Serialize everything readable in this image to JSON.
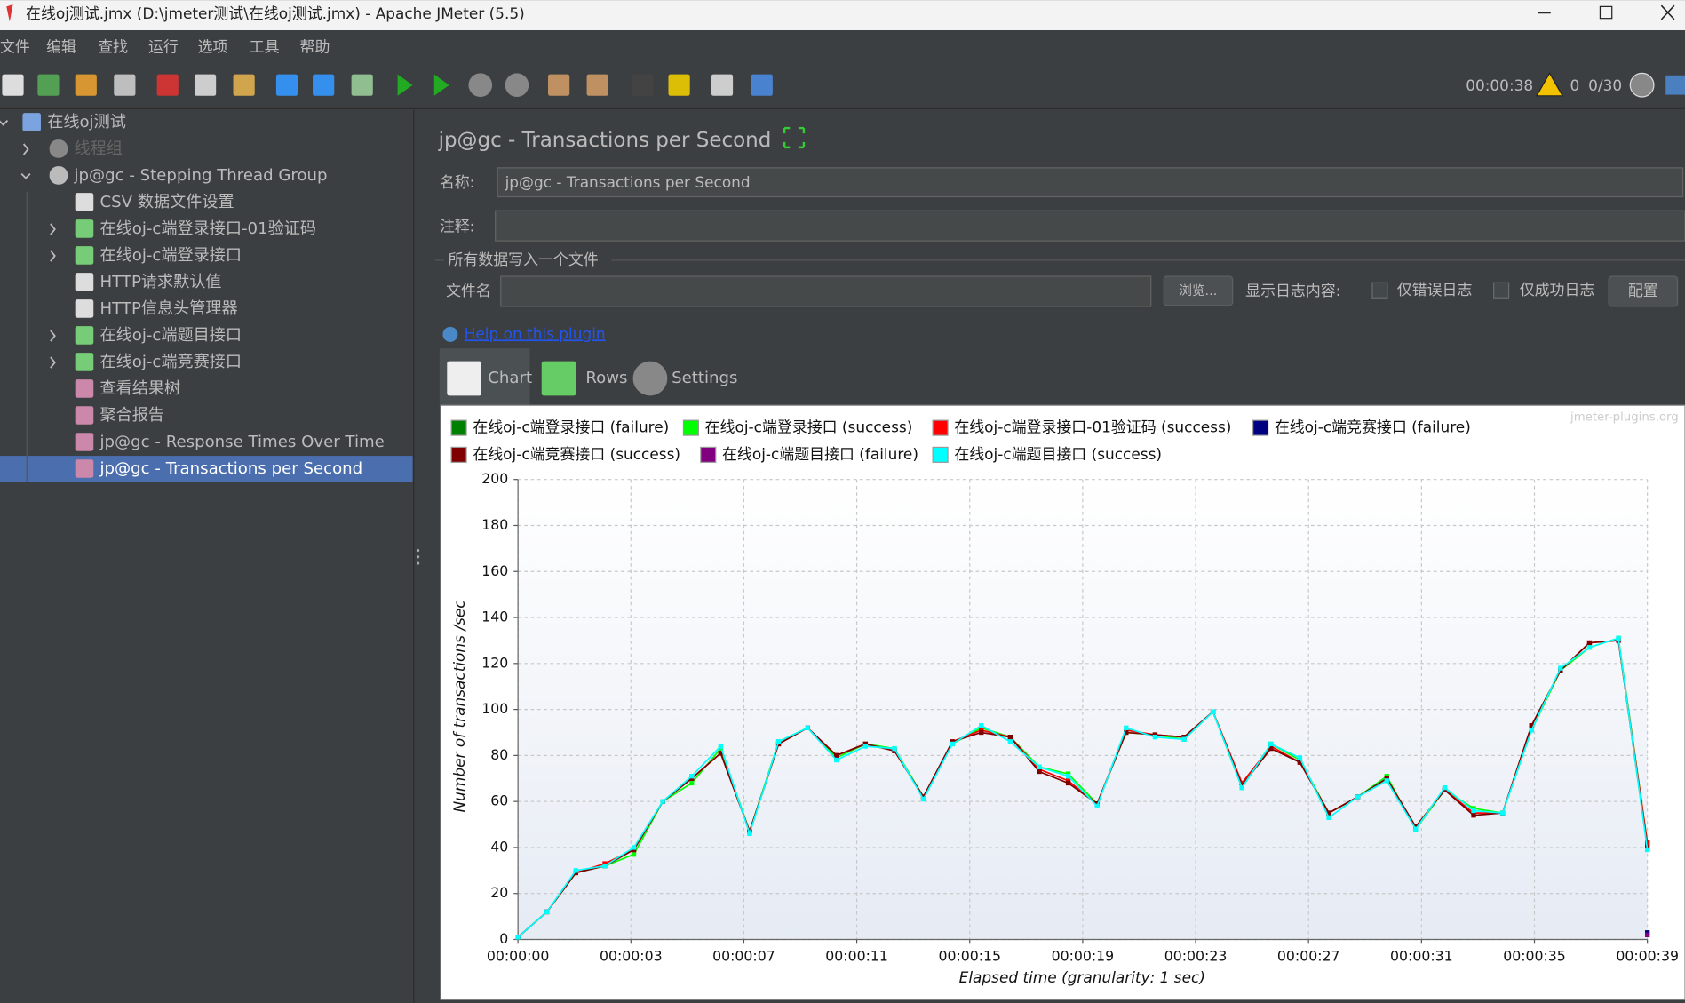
{
  "window": {
    "title": "在线oj测试.jmx (D:\\jmeter测试\\在线oj测试.jmx) - Apache JMeter (5.5)"
  },
  "menu": [
    "文件",
    "编辑",
    "查找",
    "运行",
    "选项",
    "工具",
    "帮助"
  ],
  "toolbar": {
    "elapsed": "00:00:38",
    "warnings": "0",
    "threads": "0/30"
  },
  "tree": [
    "在线oj测试",
    "线程组",
    "jp@gc - Stepping Thread Group",
    "CSV 数据文件设置",
    "在线oj-c端登录接口-01验证码",
    "在线oj-c端登录接口",
    "HTTP请求默认值",
    "HTTP信息头管理器",
    "在线oj-c端题目接口",
    "在线oj-c端竞赛接口",
    "查看结果树",
    "聚合报告",
    "jp@gc - Response Times Over Time",
    "jp@gc - Transactions per Second"
  ],
  "panel": {
    "title": "jp@gc - Transactions per Second",
    "name_label": "名称:",
    "name_value": "jp@gc - Transactions per Second",
    "comment_label": "注释:",
    "file_section": "所有数据写入一个文件",
    "file_label": "文件名",
    "browse": "浏览...",
    "log_label": "显示日志内容:",
    "errors_only": "仅错误日志",
    "success_only": "仅成功日志",
    "configure": "配置",
    "help": "Help on this plugin",
    "tabs": [
      "Chart",
      "Rows",
      "Settings"
    ],
    "watermark": "jmeter-plugins.org"
  },
  "chart_data": {
    "type": "line",
    "xlabel": "Elapsed time (granularity: 1 sec)",
    "ylabel": "Number of transactions /sec",
    "x": [
      0,
      1,
      2,
      3,
      4,
      5,
      6,
      7,
      8,
      9,
      10,
      11,
      12,
      13,
      14,
      15,
      16,
      17,
      18,
      19,
      20,
      21,
      22,
      23,
      24,
      25,
      26,
      27,
      28,
      29,
      30,
      31,
      32,
      33,
      34,
      35,
      36,
      37,
      38,
      39
    ],
    "xlim": [
      0,
      39
    ],
    "xticks": [
      {
        "value": 0,
        "label": "00:00:00"
      },
      {
        "value": 3.9,
        "label": "00:00:03"
      },
      {
        "value": 7.8,
        "label": "00:00:07"
      },
      {
        "value": 11.7,
        "label": "00:00:11"
      },
      {
        "value": 15.6,
        "label": "00:00:15"
      },
      {
        "value": 19.5,
        "label": "00:00:19"
      },
      {
        "value": 23.4,
        "label": "00:00:23"
      },
      {
        "value": 27.3,
        "label": "00:00:27"
      },
      {
        "value": 31.2,
        "label": "00:00:31"
      },
      {
        "value": 35.1,
        "label": "00:00:35"
      },
      {
        "value": 39,
        "label": "00:00:39"
      }
    ],
    "ylim": [
      0,
      200
    ],
    "yticks": [
      0,
      20,
      40,
      60,
      80,
      100,
      120,
      140,
      160,
      180,
      200
    ],
    "grid": true,
    "series": [
      {
        "name": "在线oj-c端登录接口 (failure)",
        "color": "#008000",
        "values": [
          null,
          null,
          null,
          null,
          null,
          null,
          null,
          null,
          null,
          null,
          null,
          null,
          null,
          null,
          null,
          null,
          null,
          null,
          null,
          null,
          null,
          null,
          null,
          null,
          null,
          null,
          null,
          null,
          null,
          null,
          null,
          null,
          null,
          null,
          null,
          null,
          null,
          null,
          null,
          null
        ]
      },
      {
        "name": "在线oj-c端登录接口 (success)",
        "color": "#00ff00",
        "values": [
          1,
          12,
          29,
          32,
          37,
          60,
          68,
          83,
          47,
          86,
          92,
          79,
          85,
          83,
          62,
          85,
          92,
          88,
          75,
          72,
          59,
          90,
          89,
          87,
          99,
          66,
          85,
          78,
          55,
          62,
          71,
          48,
          65,
          57,
          55,
          91,
          117,
          127,
          131,
          42
        ]
      },
      {
        "name": "在线oj-c端登录接口-01验证码 (success)",
        "color": "#ff0000",
        "values": [
          1,
          12,
          29,
          33,
          39,
          60,
          70,
          81,
          47,
          85,
          92,
          80,
          85,
          82,
          62,
          86,
          91,
          88,
          74,
          69,
          59,
          91,
          89,
          88,
          99,
          68,
          84,
          77,
          55,
          62,
          70,
          49,
          65,
          55,
          55,
          93,
          117,
          129,
          130,
          42
        ]
      },
      {
        "name": "在线oj-c端竞赛接口 (failure)",
        "color": "#000080",
        "values": [
          null,
          null,
          null,
          null,
          null,
          null,
          null,
          null,
          null,
          null,
          null,
          null,
          null,
          null,
          null,
          null,
          null,
          null,
          null,
          null,
          null,
          null,
          null,
          null,
          null,
          null,
          null,
          null,
          null,
          null,
          null,
          null,
          null,
          null,
          null,
          null,
          null,
          null,
          null,
          3
        ]
      },
      {
        "name": "在线oj-c端竞赛接口 (success)",
        "color": "#800000",
        "values": [
          1,
          12,
          29,
          32,
          39,
          60,
          70,
          81,
          47,
          85,
          92,
          80,
          85,
          82,
          62,
          86,
          90,
          88,
          73,
          68,
          59,
          90,
          89,
          88,
          99,
          67,
          83,
          77,
          55,
          62,
          70,
          49,
          65,
          54,
          55,
          93,
          117,
          129,
          130,
          40
        ]
      },
      {
        "name": "在线oj-c端题目接口 (failure)",
        "color": "#800080",
        "values": [
          null,
          null,
          null,
          null,
          null,
          null,
          null,
          null,
          null,
          null,
          null,
          null,
          null,
          null,
          null,
          null,
          null,
          null,
          null,
          null,
          null,
          null,
          null,
          null,
          null,
          null,
          null,
          null,
          null,
          null,
          null,
          null,
          null,
          null,
          null,
          null,
          null,
          null,
          null,
          2
        ]
      },
      {
        "name": "在线oj-c端题目接口 (success)",
        "color": "#00ffff",
        "values": [
          1,
          12,
          30,
          32,
          40,
          60,
          71,
          84,
          46,
          86,
          92,
          78,
          84,
          83,
          61,
          85,
          93,
          86,
          75,
          71,
          58,
          92,
          88,
          87,
          99,
          66,
          85,
          79,
          53,
          62,
          69,
          48,
          66,
          56,
          55,
          91,
          118,
          127,
          131,
          39
        ]
      }
    ]
  }
}
